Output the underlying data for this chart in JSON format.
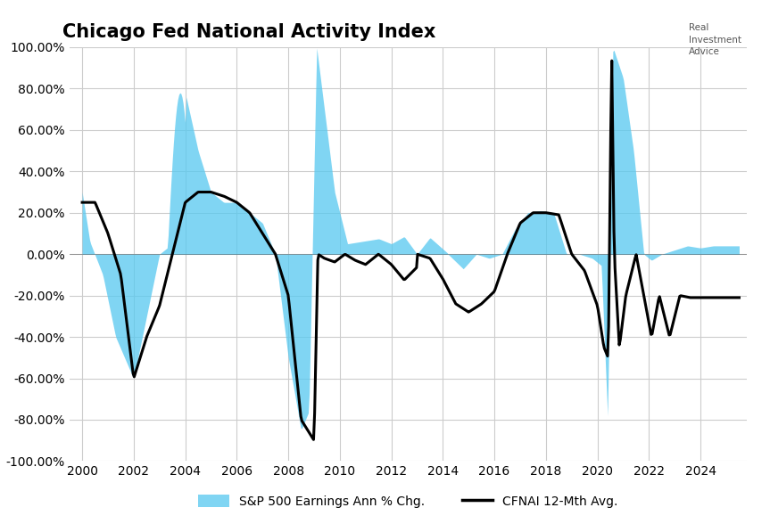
{
  "title": "Chicago Fed National Activity Index",
  "ylim": [
    -1.0,
    1.0
  ],
  "yticks": [
    -1.0,
    -0.8,
    -0.6,
    -0.4,
    -0.2,
    0.0,
    0.2,
    0.4,
    0.6,
    0.8,
    1.0
  ],
  "ytick_labels": [
    "-100.00%",
    "-80.00%",
    "-60.00%",
    "-40.00%",
    "-20.00%",
    "0.00%",
    "20.00%",
    "40.00%",
    "60.00%",
    "80.00%",
    "100.00%"
  ],
  "xlim": [
    1999.5,
    2025.8
  ],
  "xticks": [
    2000,
    2002,
    2004,
    2006,
    2008,
    2010,
    2012,
    2014,
    2016,
    2018,
    2020,
    2022,
    2024
  ],
  "background_color": "#ffffff",
  "grid_color": "#cccccc",
  "fill_color": "#56c8f0",
  "fill_alpha": 0.75,
  "line_color": "#000000",
  "line_width": 2.2,
  "legend_fill_label": "S&P 500 Earnings Ann % Chg.",
  "legend_line_label": "CFNAI 12-Mth Avg.",
  "title_fontsize": 15,
  "tick_fontsize": 10,
  "legend_fontsize": 10
}
